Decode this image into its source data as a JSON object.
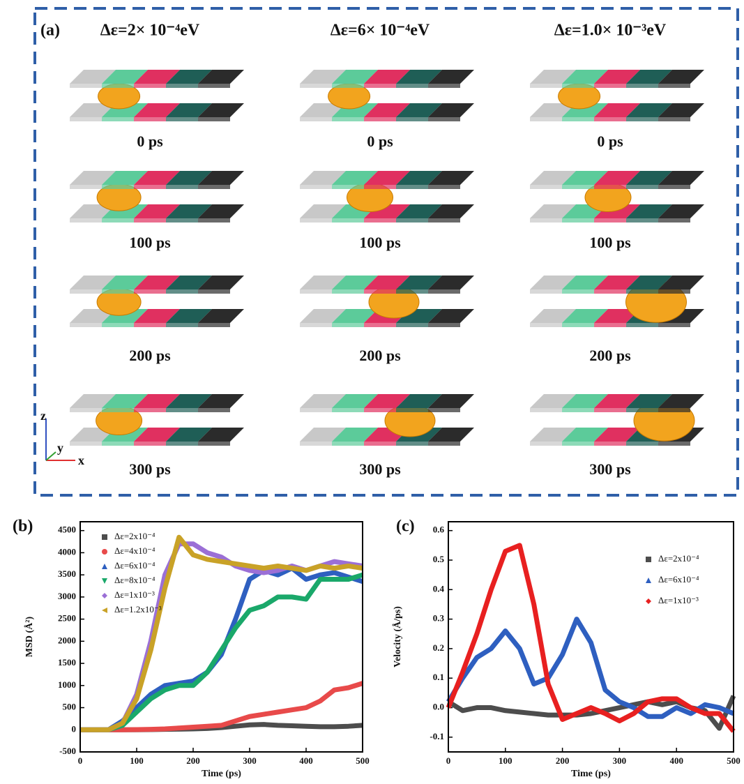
{
  "panel_a": {
    "label": "(a)",
    "columns": [
      {
        "header": "Δε=2× 10⁻⁴eV",
        "times": [
          "0 ps",
          "100 ps",
          "200 ps",
          "300 ps"
        ]
      },
      {
        "header": "Δε=6× 10⁻⁴eV",
        "times": [
          "0 ps",
          "100 ps",
          "200 ps",
          "300 ps"
        ]
      },
      {
        "header": "Δε=1.0× 10⁻³eV",
        "times": [
          "0 ps",
          "100 ps",
          "200 ps",
          "300 ps"
        ]
      }
    ],
    "axes": {
      "z": "z",
      "y": "y",
      "x": "x"
    }
  },
  "chart_data": [
    {
      "type": "line",
      "panel_label": "(b)",
      "x_label": "Time (ps)",
      "y_label": "MSD (Å²)",
      "xlim": [
        0,
        500
      ],
      "xticks": [
        0,
        100,
        200,
        300,
        400,
        500
      ],
      "ylim": [
        -500,
        4700
      ],
      "yticks": [
        -500,
        0,
        500,
        1000,
        1500,
        2000,
        2500,
        3000,
        3500,
        4000,
        4500
      ],
      "x": [
        0,
        25,
        50,
        75,
        100,
        125,
        150,
        175,
        200,
        225,
        250,
        275,
        300,
        325,
        350,
        375,
        400,
        425,
        450,
        475,
        500
      ],
      "series": [
        {
          "name": "Δε=2x10⁻⁴",
          "color": "#4d4d4d",
          "marker": "square",
          "values": [
            0,
            0,
            0,
            0,
            0,
            5,
            10,
            15,
            20,
            30,
            50,
            80,
            110,
            120,
            100,
            90,
            80,
            70,
            70,
            80,
            100
          ]
        },
        {
          "name": "Δε=4x10⁻⁴",
          "color": "#e84a4a",
          "marker": "circle",
          "values": [
            0,
            0,
            0,
            0,
            5,
            10,
            20,
            40,
            60,
            80,
            100,
            200,
            300,
            350,
            400,
            450,
            500,
            650,
            900,
            950,
            1050
          ]
        },
        {
          "name": "Δε=6x10⁻⁴",
          "color": "#2e5fc0",
          "marker": "triangle-up",
          "values": [
            0,
            0,
            0,
            200,
            500,
            800,
            1000,
            1050,
            1100,
            1300,
            1700,
            2500,
            3400,
            3600,
            3500,
            3650,
            3400,
            3500,
            3550,
            3450,
            3350
          ]
        },
        {
          "name": "Δε=8x10⁻⁴",
          "color": "#1aa86a",
          "marker": "triangle-down",
          "values": [
            0,
            0,
            0,
            100,
            400,
            700,
            900,
            1000,
            1000,
            1300,
            1800,
            2300,
            2700,
            2800,
            3000,
            3000,
            2950,
            3400,
            3400,
            3400,
            3500
          ]
        },
        {
          "name": "Δε=1x10⁻³",
          "color": "#9b6fd6",
          "marker": "diamond",
          "values": [
            0,
            0,
            0,
            150,
            800,
            2000,
            3500,
            4200,
            4200,
            4000,
            3900,
            3700,
            3600,
            3550,
            3600,
            3700,
            3600,
            3700,
            3800,
            3750,
            3700
          ]
        },
        {
          "name": "Δε=1.2x10⁻³",
          "color": "#c9a227",
          "marker": "triangle-left",
          "values": [
            0,
            0,
            0,
            150,
            700,
            1800,
            3200,
            4350,
            3950,
            3850,
            3800,
            3750,
            3700,
            3650,
            3700,
            3650,
            3600,
            3700,
            3650,
            3700,
            3650
          ]
        }
      ]
    },
    {
      "type": "line",
      "panel_label": "(c)",
      "x_label": "Time (ps)",
      "y_label": "Velocity (Å/ps)",
      "xlim": [
        0,
        500
      ],
      "xticks": [
        0,
        100,
        200,
        300,
        400,
        500
      ],
      "ylim": [
        -0.15,
        0.63
      ],
      "yticks": [
        -0.1,
        {
          "value": 0,
          "label": "0.0"
        },
        0.1,
        0.2,
        0.3,
        0.4,
        0.5,
        0.6
      ],
      "x": [
        0,
        25,
        50,
        75,
        100,
        125,
        150,
        175,
        200,
        225,
        250,
        275,
        300,
        325,
        350,
        375,
        400,
        425,
        450,
        475,
        500
      ],
      "series": [
        {
          "name": "Δε=2x10⁻⁴",
          "color": "#4d4d4d",
          "marker": "square",
          "values": [
            0.02,
            -0.01,
            0.0,
            0.0,
            -0.01,
            -0.015,
            -0.02,
            -0.025,
            -0.025,
            -0.025,
            -0.02,
            -0.01,
            0.0,
            0.01,
            0.02,
            0.01,
            0.02,
            0.0,
            -0.01,
            -0.07,
            0.04
          ]
        },
        {
          "name": "Δε=6x10⁻⁴",
          "color": "#2e5fc0",
          "marker": "triangle-up",
          "values": [
            0.02,
            0.1,
            0.17,
            0.2,
            0.26,
            0.2,
            0.08,
            0.1,
            0.18,
            0.3,
            0.22,
            0.06,
            0.02,
            0.0,
            -0.03,
            -0.03,
            0.0,
            -0.02,
            0.01,
            0.0,
            -0.02
          ]
        },
        {
          "name": "Δε=1x10⁻³",
          "color": "#e82020",
          "marker": "diamond",
          "values": [
            0.0,
            0.12,
            0.25,
            0.4,
            0.53,
            0.55,
            0.35,
            0.08,
            -0.04,
            -0.02,
            0.0,
            -0.02,
            -0.045,
            -0.02,
            0.02,
            0.03,
            0.03,
            0.0,
            -0.02,
            -0.02,
            -0.08
          ]
        }
      ]
    }
  ]
}
